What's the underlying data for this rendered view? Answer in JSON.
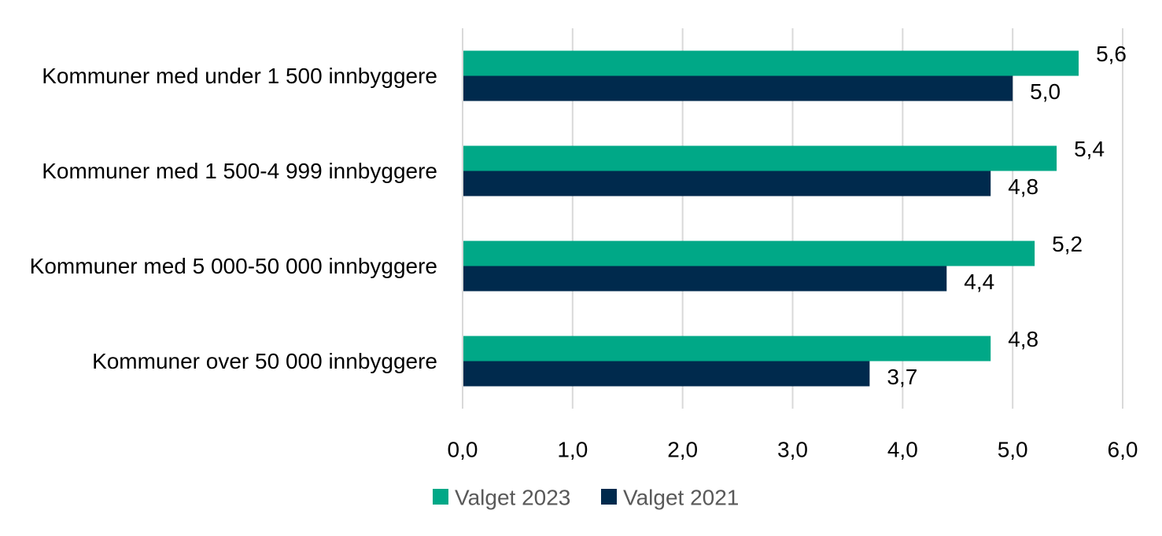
{
  "chart_data": {
    "type": "bar",
    "orientation": "horizontal",
    "title": "",
    "xlabel": "",
    "ylabel": "",
    "categories": [
      "Kommuner med under 1 500 innbyggere",
      "Kommuner med 1 500-4 999 innbyggere",
      "Kommuner med 5 000-50 000 innbyggere",
      "Kommuner over 50 000 innbyggere"
    ],
    "series": [
      {
        "name": "Valget 2023",
        "color": "#00A887",
        "values": [
          5.6,
          5.4,
          5.2,
          4.8
        ],
        "labels": [
          "5,6",
          "5,4",
          "5,2",
          "4,8"
        ]
      },
      {
        "name": "Valget 2021",
        "color": "#002A4D",
        "values": [
          5.0,
          4.8,
          4.4,
          3.7
        ],
        "labels": [
          "5,0",
          "4,8",
          "4,4",
          "3,7"
        ]
      }
    ],
    "xlim": [
      0,
      6
    ],
    "x_ticks": [
      0,
      1,
      2,
      3,
      4,
      5,
      6
    ],
    "x_tick_labels": [
      "0,0",
      "1,0",
      "2,0",
      "3,0",
      "4,0",
      "5,0",
      "6,0"
    ],
    "grid": "vertical",
    "legend_position": "bottom"
  },
  "colors": {
    "gridline": "#D9D9D9",
    "axis_line": "#D9D9D9"
  }
}
